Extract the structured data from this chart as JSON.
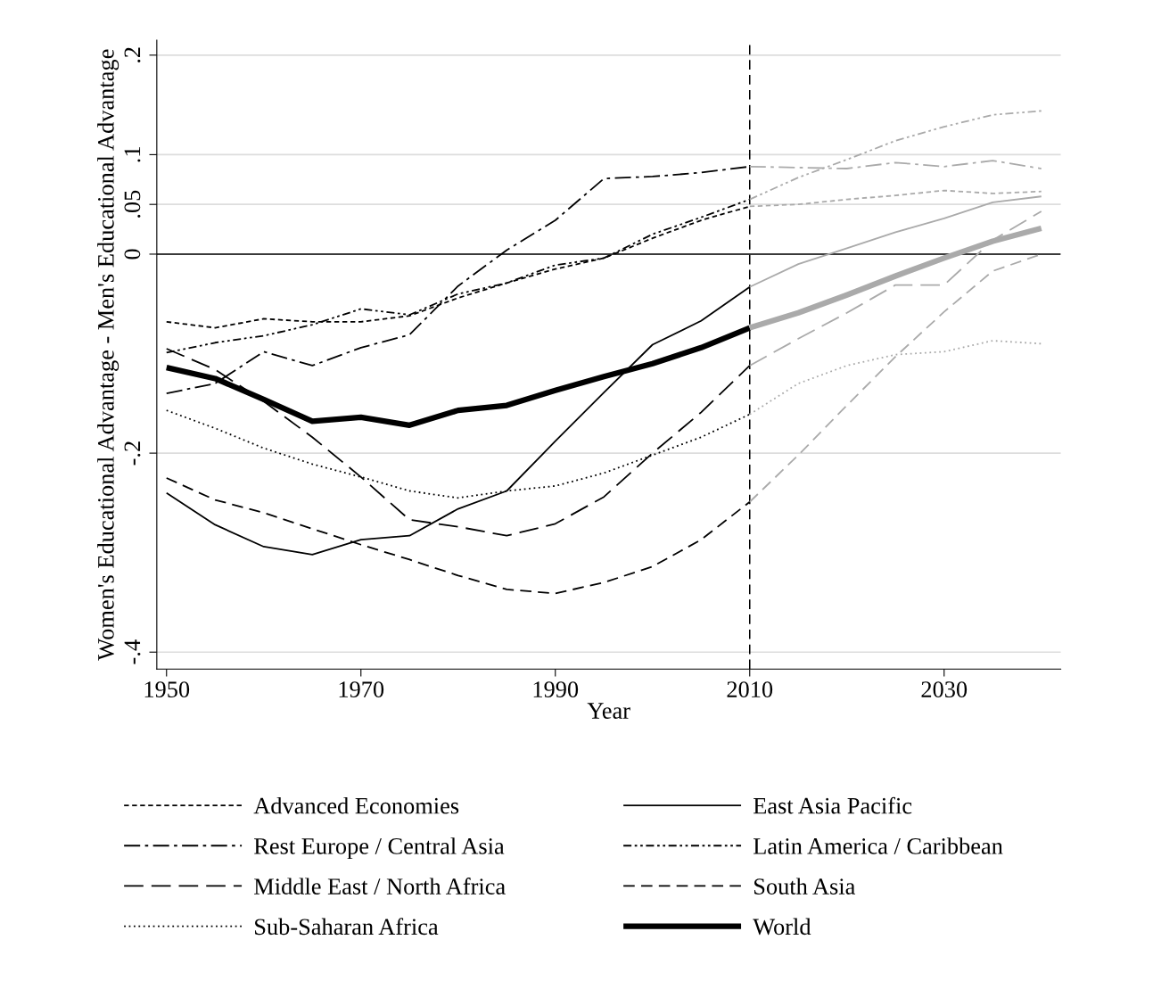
{
  "chart_data": {
    "type": "line",
    "xlabel": "Year",
    "ylabel": "Women's Educational Advantage - Men's Educational Advantage",
    "x": [
      1950,
      1955,
      1960,
      1965,
      1970,
      1975,
      1980,
      1985,
      1990,
      1995,
      2000,
      2005,
      2010
    ],
    "xlim": [
      1949,
      2042
    ],
    "xticks": [
      1950,
      1970,
      1990,
      2010,
      2030
    ],
    "ylim": [
      -0.417,
      0.215
    ],
    "yticks": [
      {
        "value": -0.4,
        "label": "-.4"
      },
      {
        "value": -0.2,
        "label": "-.2"
      },
      0,
      {
        "value": 0.05,
        "label": ".05"
      },
      {
        "value": 0.1,
        "label": ".1"
      },
      {
        "value": 0.2,
        "label": ".2"
      }
    ],
    "grid": "y",
    "legend": "bottom",
    "ref_lines": [
      {
        "axis": "y",
        "value": 0,
        "color": "#000000",
        "line_style": "solid"
      },
      {
        "axis": "x",
        "value": 2010,
        "color": "#000000",
        "line_style": "dashed"
      }
    ],
    "series": [
      {
        "name": "Advanced Economies",
        "line_style": "shortdash",
        "color": "#000000",
        "values": [
          -0.068,
          -0.074,
          -0.065,
          -0.068,
          -0.068,
          -0.062,
          -0.044,
          -0.029,
          -0.015,
          -0.004,
          0.016,
          0.034,
          0.048
        ]
      },
      {
        "name": "Rest Europe / Central Asia",
        "line_style": "dashdot",
        "color": "#000000",
        "values": [
          -0.14,
          -0.13,
          -0.098,
          -0.112,
          -0.094,
          -0.081,
          -0.032,
          0.004,
          0.034,
          0.076,
          0.078,
          0.082,
          0.088
        ]
      },
      {
        "name": "Middle East / North Africa",
        "line_style": "longdash",
        "color": "#000000",
        "values": [
          -0.095,
          -0.116,
          -0.148,
          -0.184,
          -0.224,
          -0.267,
          -0.274,
          -0.283,
          -0.271,
          -0.244,
          -0.2,
          -0.159,
          -0.112
        ]
      },
      {
        "name": "Sub-Saharan Africa",
        "line_style": "dotted",
        "color": "#000000",
        "values": [
          -0.157,
          -0.175,
          -0.195,
          -0.211,
          -0.224,
          -0.238,
          -0.245,
          -0.238,
          -0.233,
          -0.22,
          -0.202,
          -0.184,
          -0.161
        ]
      },
      {
        "name": "East Asia Pacific",
        "line_style": "solid",
        "color": "#000000",
        "values": [
          -0.24,
          -0.272,
          -0.294,
          -0.302,
          -0.287,
          -0.283,
          -0.256,
          -0.238,
          -0.188,
          -0.139,
          -0.091,
          -0.067,
          -0.033
        ]
      },
      {
        "name": "Latin America / Caribbean",
        "line_style": "dashdotdot",
        "color": "#000000",
        "values": [
          -0.099,
          -0.089,
          -0.082,
          -0.071,
          -0.055,
          -0.061,
          -0.04,
          -0.029,
          -0.011,
          -0.004,
          0.02,
          0.037,
          0.055
        ]
      },
      {
        "name": "South Asia",
        "line_style": "dashed",
        "color": "#000000",
        "values": [
          -0.225,
          -0.247,
          -0.26,
          -0.276,
          -0.292,
          -0.307,
          -0.323,
          -0.337,
          -0.341,
          -0.33,
          -0.314,
          -0.287,
          -0.249
        ]
      },
      {
        "name": "World",
        "line_style": "solid",
        "color": "#000000",
        "values": [
          -0.114,
          -0.125,
          -0.146,
          -0.168,
          -0.164,
          -0.172,
          -0.157,
          -0.152,
          -0.137,
          -0.123,
          -0.11,
          -0.094,
          -0.074
        ]
      },
      {
        "line_style": "shortdash",
        "color": "#aaaaaa",
        "x": [
          2010,
          2015,
          2020,
          2025,
          2030,
          2035,
          2040
        ],
        "values": [
          0.048,
          0.05,
          0.055,
          0.059,
          0.064,
          0.061,
          0.063
        ]
      },
      {
        "line_style": "dashdot",
        "color": "#aaaaaa",
        "x": [
          2010,
          2015,
          2020,
          2025,
          2030,
          2035,
          2040
        ],
        "values": [
          0.088,
          0.087,
          0.086,
          0.092,
          0.088,
          0.094,
          0.086
        ]
      },
      {
        "line_style": "longdash",
        "color": "#aaaaaa",
        "x": [
          2010,
          2015,
          2020,
          2025,
          2030,
          2035,
          2040
        ],
        "values": [
          -0.112,
          -0.085,
          -0.059,
          -0.031,
          -0.031,
          0.014,
          0.043
        ]
      },
      {
        "line_style": "dotted",
        "color": "#aaaaaa",
        "x": [
          2010,
          2015,
          2020,
          2025,
          2030,
          2035,
          2040
        ],
        "values": [
          -0.161,
          -0.13,
          -0.112,
          -0.101,
          -0.098,
          -0.087,
          -0.09
        ]
      },
      {
        "line_style": "solid",
        "color": "#aaaaaa",
        "x": [
          2010,
          2015,
          2020,
          2025,
          2030,
          2035,
          2040
        ],
        "values": [
          -0.033,
          -0.01,
          0.006,
          0.022,
          0.036,
          0.052,
          0.058
        ]
      },
      {
        "line_style": "dashdotdot",
        "color": "#aaaaaa",
        "x": [
          2010,
          2015,
          2020,
          2025,
          2030,
          2035,
          2040
        ],
        "values": [
          0.055,
          0.077,
          0.095,
          0.114,
          0.128,
          0.14,
          0.144
        ]
      },
      {
        "line_style": "dashed",
        "color": "#aaaaaa",
        "x": [
          2010,
          2015,
          2020,
          2025,
          2030,
          2035,
          2040
        ],
        "values": [
          -0.249,
          -0.202,
          -0.152,
          -0.103,
          -0.058,
          -0.017,
          0
        ]
      },
      {
        "line_style": "solid",
        "color": "#aaaaaa",
        "x": [
          2010,
          2015,
          2020,
          2025,
          2030,
          2035,
          2040
        ],
        "values": [
          -0.074,
          -0.059,
          -0.041,
          -0.022,
          -0.004,
          0.013,
          0.026
        ]
      }
    ]
  }
}
